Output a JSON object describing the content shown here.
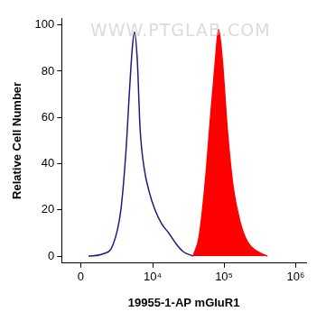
{
  "chart_data": {
    "type": "line",
    "xlabel": "19955-1-AP mGluR1",
    "ylabel": "Relative Cell Number",
    "annotations": [
      {
        "text": "WWW.PTGLAB.COM"
      }
    ],
    "log": "x",
    "xlim": [
      -1300,
      1400000
    ],
    "xticks": [
      0,
      {
        "value": 10000,
        "label": "10⁴"
      },
      {
        "value": 100000,
        "label": "10⁵"
      },
      {
        "value": 1000000,
        "label": "10⁶"
      }
    ],
    "ylim": [
      -3,
      103
    ],
    "yticks": [
      0,
      20,
      40,
      60,
      80,
      100
    ],
    "grid": false,
    "series": [
      {
        "type": "line",
        "color": "#1c1c80",
        "x": [
          505,
          1560,
          2480,
          3360,
          4040,
          4600,
          5060,
          5440,
          6000,
          6600,
          7560,
          8900,
          10800,
          13400,
          16900,
          21800,
          26800,
          37000
        ],
        "values": [
          0,
          1,
          5,
          20,
          45,
          72,
          90,
          97,
          85,
          55,
          38,
          28,
          20,
          14,
          10,
          5,
          2,
          0
        ]
      },
      {
        "type": "area",
        "color": "#ff0000",
        "x": [
          37000,
          44700,
          54000,
          64800,
          76000,
          83800,
          94600,
          111000,
          134000,
          167000,
          214000,
          293000,
          404000
        ],
        "values": [
          0,
          8,
          30,
          60,
          85,
          98,
          85,
          55,
          30,
          15,
          6,
          2,
          0
        ]
      }
    ]
  }
}
